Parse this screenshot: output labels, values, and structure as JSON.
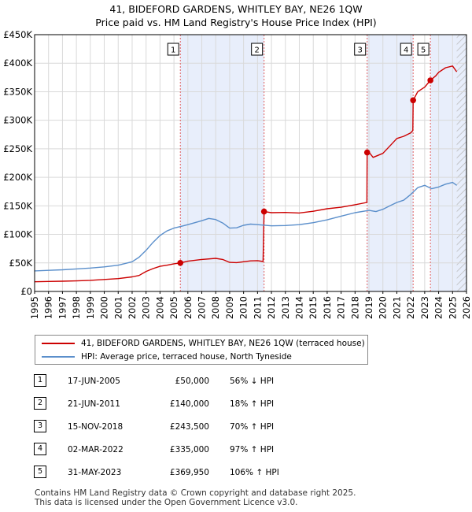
{
  "chart_data": {
    "type": "line",
    "title": "41, BIDEFORD GARDENS, WHITLEY BAY, NE26 1QW",
    "subtitle": "Price paid vs. HM Land Registry's House Price Index (HPI)",
    "xlabel": "",
    "ylabel": "",
    "xlim": [
      1995,
      2026
    ],
    "ylim": [
      0,
      450000
    ],
    "x_ticks": [
      "1995",
      "1996",
      "1997",
      "1998",
      "1999",
      "2000",
      "2001",
      "2002",
      "2003",
      "2004",
      "2005",
      "2006",
      "2007",
      "2008",
      "2009",
      "2010",
      "2011",
      "2012",
      "2013",
      "2014",
      "2015",
      "2016",
      "2017",
      "2018",
      "2019",
      "2020",
      "2021",
      "2022",
      "2023",
      "2024",
      "2025",
      "2026"
    ],
    "y_ticks": [
      {
        "value": 0,
        "label": "£0"
      },
      {
        "value": 50000,
        "label": "£50K"
      },
      {
        "value": 100000,
        "label": "£100K"
      },
      {
        "value": 150000,
        "label": "£150K"
      },
      {
        "value": 200000,
        "label": "£200K"
      },
      {
        "value": 250000,
        "label": "£250K"
      },
      {
        "value": 300000,
        "label": "£300K"
      },
      {
        "value": 350000,
        "label": "£350K"
      },
      {
        "value": 400000,
        "label": "£400K"
      },
      {
        "value": 450000,
        "label": "£450K"
      }
    ],
    "grid": true,
    "series": [
      {
        "name": "41, BIDEFORD GARDENS, WHITLEY BAY, NE26 1QW (terraced house)",
        "color": "#cc0000",
        "x": [
          1995,
          1996,
          1997,
          1998,
          1999,
          2000,
          2001,
          2002,
          2002.5,
          2003,
          2003.5,
          2004,
          2004.5,
          2005,
          2005.46,
          2006,
          2007,
          2008,
          2008.5,
          2009,
          2009.5,
          2010,
          2010.5,
          2011,
          2011.4,
          2011.47,
          2012,
          2013,
          2014,
          2015,
          2016,
          2017,
          2018,
          2018.85,
          2018.87,
          2019,
          2019.3,
          2020,
          2020.5,
          2021,
          2021.5,
          2022,
          2022.15,
          2022.17,
          2022.5,
          2023,
          2023.41,
          2023.8,
          2024,
          2024.5,
          2025,
          2025.3
        ],
        "y": [
          17000,
          17500,
          18000,
          18500,
          19500,
          21000,
          22500,
          25500,
          28000,
          35000,
          40000,
          44000,
          46000,
          48500,
          50000,
          53000,
          56000,
          58000,
          56000,
          51000,
          50500,
          52000,
          53500,
          54000,
          52500,
          140000,
          138000,
          138500,
          137500,
          140500,
          145000,
          147500,
          152000,
          156000,
          243500,
          244000,
          235000,
          242000,
          255000,
          268000,
          272000,
          278000,
          282000,
          335000,
          350000,
          358000,
          369950,
          378000,
          384000,
          392000,
          395000,
          385000
        ]
      },
      {
        "name": "HPI: Average price, terraced house, North Tyneside",
        "color": "#5b8fcb",
        "x": [
          1995,
          1996,
          1997,
          1998,
          1999,
          2000,
          2001,
          2002,
          2002.5,
          2003,
          2003.5,
          2004,
          2004.5,
          2005,
          2005.5,
          2006,
          2007,
          2007.5,
          2008,
          2008.5,
          2009,
          2009.5,
          2010,
          2010.5,
          2011,
          2012,
          2013,
          2014,
          2015,
          2016,
          2017,
          2018,
          2019,
          2019.5,
          2020,
          2020.5,
          2021,
          2021.5,
          2022,
          2022.5,
          2023,
          2023.5,
          2024,
          2024.5,
          2025,
          2025.3
        ],
        "y": [
          36000,
          37000,
          38000,
          39500,
          41000,
          43000,
          46000,
          52000,
          60000,
          72000,
          86000,
          98000,
          106000,
          111000,
          114000,
          117000,
          124000,
          128000,
          126000,
          120000,
          111000,
          111500,
          116000,
          118000,
          117000,
          115000,
          115500,
          117000,
          120500,
          125500,
          132000,
          138000,
          142000,
          140000,
          144000,
          150000,
          156000,
          160000,
          170000,
          182000,
          186000,
          180000,
          183000,
          188000,
          191000,
          186000
        ]
      }
    ],
    "sales": [
      {
        "label": "1",
        "x": 2005.46,
        "price": 50000
      },
      {
        "label": "2",
        "x": 2011.47,
        "price": 140000
      },
      {
        "label": "3",
        "x": 2018.87,
        "price": 243500
      },
      {
        "label": "4",
        "x": 2022.17,
        "price": 335000
      },
      {
        "label": "5",
        "x": 2023.41,
        "price": 369950
      }
    ],
    "shaded_ranges": [
      [
        2005.46,
        2011.47
      ],
      [
        2018.87,
        2022.17
      ],
      [
        2023.41,
        2026
      ]
    ],
    "colors": {
      "price_line": "#cc0000",
      "hpi_line": "#5b8fcb",
      "shade": "#e8eefb",
      "marker_line": "#e06060",
      "future_hatch": "#b0b0b0"
    }
  },
  "legend": {
    "items": [
      {
        "label": "41, BIDEFORD GARDENS, WHITLEY BAY, NE26 1QW (terraced house)",
        "color": "#cc0000"
      },
      {
        "label": "HPI: Average price, terraced house, North Tyneside",
        "color": "#5b8fcb"
      }
    ]
  },
  "transactions": [
    {
      "num": "1",
      "date": "17-JUN-2005",
      "price": "£50,000",
      "hpi": "56% ↓ HPI"
    },
    {
      "num": "2",
      "date": "21-JUN-2011",
      "price": "£140,000",
      "hpi": "18% ↑ HPI"
    },
    {
      "num": "3",
      "date": "15-NOV-2018",
      "price": "£243,500",
      "hpi": "70% ↑ HPI"
    },
    {
      "num": "4",
      "date": "02-MAR-2022",
      "price": "£335,000",
      "hpi": "97% ↑ HPI"
    },
    {
      "num": "5",
      "date": "31-MAY-2023",
      "price": "£369,950",
      "hpi": "106% ↑ HPI"
    }
  ],
  "footer": {
    "line1": "Contains HM Land Registry data © Crown copyright and database right 2025.",
    "line2": "This data is licensed under the Open Government Licence v3.0."
  }
}
